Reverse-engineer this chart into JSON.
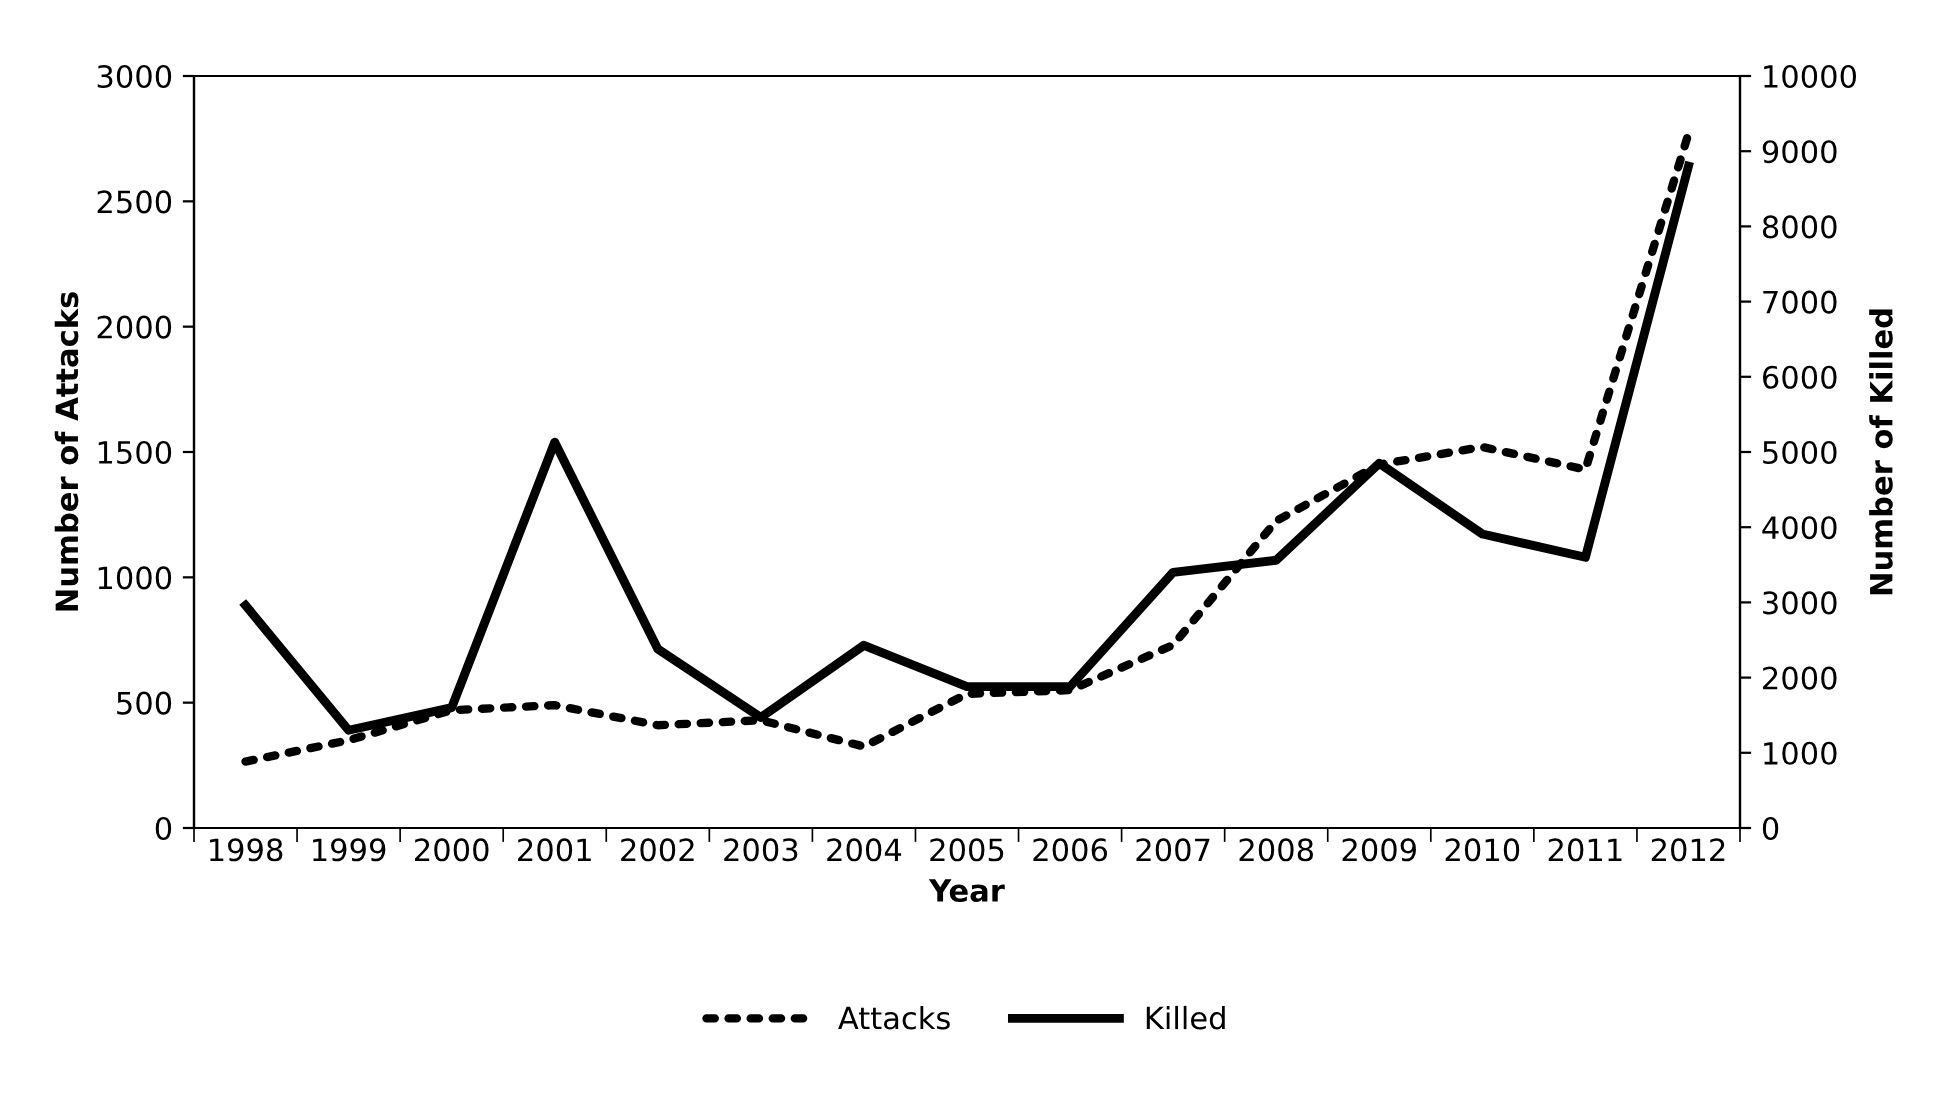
{
  "chart_data": {
    "type": "line",
    "xlabel": "Year",
    "ylabel": "Number of Attacks",
    "y2label": "Number of Killed",
    "categories": [
      "1998",
      "1999",
      "2000",
      "2001",
      "2002",
      "2003",
      "2004",
      "2005",
      "2006",
      "2007",
      "2008",
      "2009",
      "2010",
      "2011",
      "2012"
    ],
    "series": [
      {
        "name": "Attacks",
        "color": "#000000",
        "line_style": "dotted",
        "values": [
          265,
          350,
          470,
          490,
          410,
          430,
          325,
          535,
          550,
          730,
          1225,
          1450,
          1520,
          1430,
          2770
        ]
      },
      {
        "name": "Killed",
        "color": "#000000",
        "line_style": "solid",
        "axis": "y2",
        "values": [
          2960,
          1300,
          1600,
          5130,
          2380,
          1470,
          2430,
          1880,
          1880,
          3400,
          3560,
          4850,
          3910,
          3600,
          8800
        ]
      }
    ],
    "ylim": [
      0,
      3000
    ],
    "yticks": [
      0,
      500,
      1000,
      1500,
      2000,
      2500,
      3000
    ],
    "y2lim": [
      0,
      10000
    ],
    "y2ticks": [
      0,
      1000,
      2000,
      3000,
      4000,
      5000,
      6000,
      7000,
      8000,
      9000,
      10000
    ],
    "grid": false,
    "legend": "bottom",
    "marker": "none"
  }
}
